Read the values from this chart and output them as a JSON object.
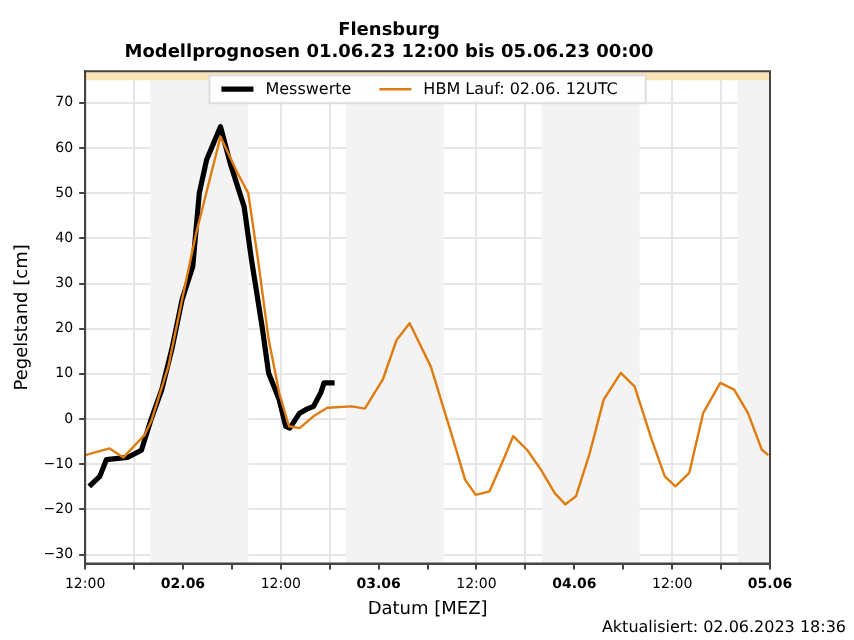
{
  "chart_data": {
    "type": "line",
    "title": "Flensburg",
    "subtitle": "Modellprognosen 01.06.23 12:00 bis 05.06.23 00:00",
    "xlabel": "Datum [MEZ]",
    "ylabel": "Pegelstand [cm]",
    "xlim": [
      "2023-06-01T12:00",
      "2023-06-05"
    ],
    "xticks": [
      {
        "value": "2023-06-01T12:00",
        "label": "12:00"
      },
      {
        "value": "2023-06-01T18:00",
        "label": null
      },
      {
        "value": "2023-06-02",
        "label": "02.06"
      },
      {
        "value": "2023-06-02T06:00",
        "label": null
      },
      {
        "value": "2023-06-02T12:00",
        "label": "12:00"
      },
      {
        "value": "2023-06-02T18:00",
        "label": null
      },
      {
        "value": "2023-06-03",
        "label": "03.06"
      },
      {
        "value": "2023-06-03T06:00",
        "label": null
      },
      {
        "value": "2023-06-03T12:00",
        "label": "12:00"
      },
      {
        "value": "2023-06-03T18:00",
        "label": null
      },
      {
        "value": "2023-06-04",
        "label": "04.06"
      },
      {
        "value": "2023-06-04T06:00",
        "label": null
      },
      {
        "value": "2023-06-04T12:00",
        "label": "12:00"
      },
      {
        "value": "2023-06-04T18:00",
        "label": null
      },
      {
        "value": "2023-06-05",
        "label": "05.06"
      }
    ],
    "ylim": [
      -32,
      77
    ],
    "yticks": [
      -30,
      -20,
      -10,
      0,
      10,
      20,
      30,
      40,
      50,
      60,
      70
    ],
    "grid": true,
    "legend": "top",
    "bands": [
      {
        "axis": "x",
        "from": "2023-06-01T20:00",
        "to": "2023-06-02T08:00",
        "color": "#f3f3f3"
      },
      {
        "axis": "x",
        "from": "2023-06-02T20:00",
        "to": "2023-06-03T08:00",
        "color": "#f3f3f3"
      },
      {
        "axis": "x",
        "from": "2023-06-03T20:00",
        "to": "2023-06-04T08:00",
        "color": "#f3f3f3"
      },
      {
        "axis": "x",
        "from": "2023-06-04T20:00",
        "to": "2023-06-05",
        "color": "#f3f3f3"
      },
      {
        "axis": "y",
        "from": 75,
        "to": 77,
        "color": "#fbe3b8"
      }
    ],
    "annotations": [
      "Aktualisiert: 02.06.2023 18:36"
    ],
    "series": [
      {
        "name": "Messwerte",
        "color": "#000000",
        "x": [
          "2023-06-01T12:30",
          "2023-06-01T13:48",
          "2023-06-01T14:36",
          "2023-06-01T17:12",
          "2023-06-01T18:54",
          "2023-06-01T20:06",
          "2023-06-01T21:24",
          "2023-06-01T22:42",
          "2023-06-01T23:54",
          "2023-06-02T01:12",
          "2023-06-02T02:00",
          "2023-06-02T02:54",
          "2023-06-02T04:36",
          "2023-06-02T05:48",
          "2023-06-02T06:42",
          "2023-06-02T07:30",
          "2023-06-02T08:24",
          "2023-06-02T09:42",
          "2023-06-02T10:30",
          "2023-06-02T11:48",
          "2023-06-02T12:36",
          "2023-06-02T13:06",
          "2023-06-02T14:18",
          "2023-06-02T15:12",
          "2023-06-02T16:00",
          "2023-06-02T16:54",
          "2023-06-02T17:18",
          "2023-06-02T18:36"
        ],
        "values": [
          -14.9,
          -12.7,
          -9,
          -8.5,
          -6.9,
          0,
          6.5,
          16,
          26.5,
          33.8,
          50,
          57.4,
          64.7,
          56.6,
          51.5,
          47,
          35.3,
          20.5,
          10.2,
          4.3,
          -1.6,
          -2,
          1.3,
          2.2,
          2.8,
          5.8,
          8,
          8
        ]
      },
      {
        "name": "HBM Lauf: 02.06. 12UTC",
        "color": "#e07b10",
        "x": [
          "2023-06-01T12:00",
          "2023-06-01T15:00",
          "2023-06-01T16:42",
          "2023-06-01T19:18",
          "2023-06-01T20:06",
          "2023-06-01T22:12",
          "2023-06-01T23:54",
          "2023-06-02T01:36",
          "2023-06-02T04:36",
          "2023-06-02T06:42",
          "2023-06-02T08:00",
          "2023-06-02T09:12",
          "2023-06-02T10:30",
          "2023-06-02T11:48",
          "2023-06-02T13:00",
          "2023-06-02T14:18",
          "2023-06-02T16:00",
          "2023-06-02T17:42",
          "2023-06-02T20:42",
          "2023-06-02T22:18",
          "2023-06-03T00:30",
          "2023-06-03T02:12",
          "2023-06-03T03:48",
          "2023-06-03T06:24",
          "2023-06-03T08:54",
          "2023-06-03T10:36",
          "2023-06-03T11:54",
          "2023-06-03T13:36",
          "2023-06-03T15:18",
          "2023-06-03T16:30",
          "2023-06-03T18:12",
          "2023-06-03T19:54",
          "2023-06-03T21:36",
          "2023-06-03T22:54",
          "2023-06-04T00:12",
          "2023-06-04T01:54",
          "2023-06-04T03:36",
          "2023-06-04T05:42",
          "2023-06-04T07:24",
          "2023-06-04T09:30",
          "2023-06-04T11:06",
          "2023-06-04T12:24",
          "2023-06-04T14:06",
          "2023-06-04T15:48",
          "2023-06-04T17:54",
          "2023-06-04T19:36",
          "2023-06-04T21:18",
          "2023-06-04T23:00",
          "2023-06-04T23:48"
        ],
        "values": [
          -8,
          -6.5,
          -8.5,
          -3.5,
          -0.5,
          11.6,
          26.5,
          41,
          62.5,
          54.4,
          50,
          35.3,
          17.7,
          5.8,
          -1.6,
          -2,
          0.6,
          2.5,
          2.8,
          2.3,
          8.7,
          17.5,
          21.2,
          11.6,
          -3.1,
          -13.4,
          -16.8,
          -16,
          -9,
          -3.8,
          -6.8,
          -11.2,
          -16.4,
          -18.9,
          -17.1,
          -7.5,
          4.3,
          10.2,
          7.2,
          -4.6,
          -12.7,
          -14.9,
          -11.9,
          1.3,
          8,
          6.5,
          1.3,
          -6.8,
          -8
        ]
      }
    ]
  }
}
